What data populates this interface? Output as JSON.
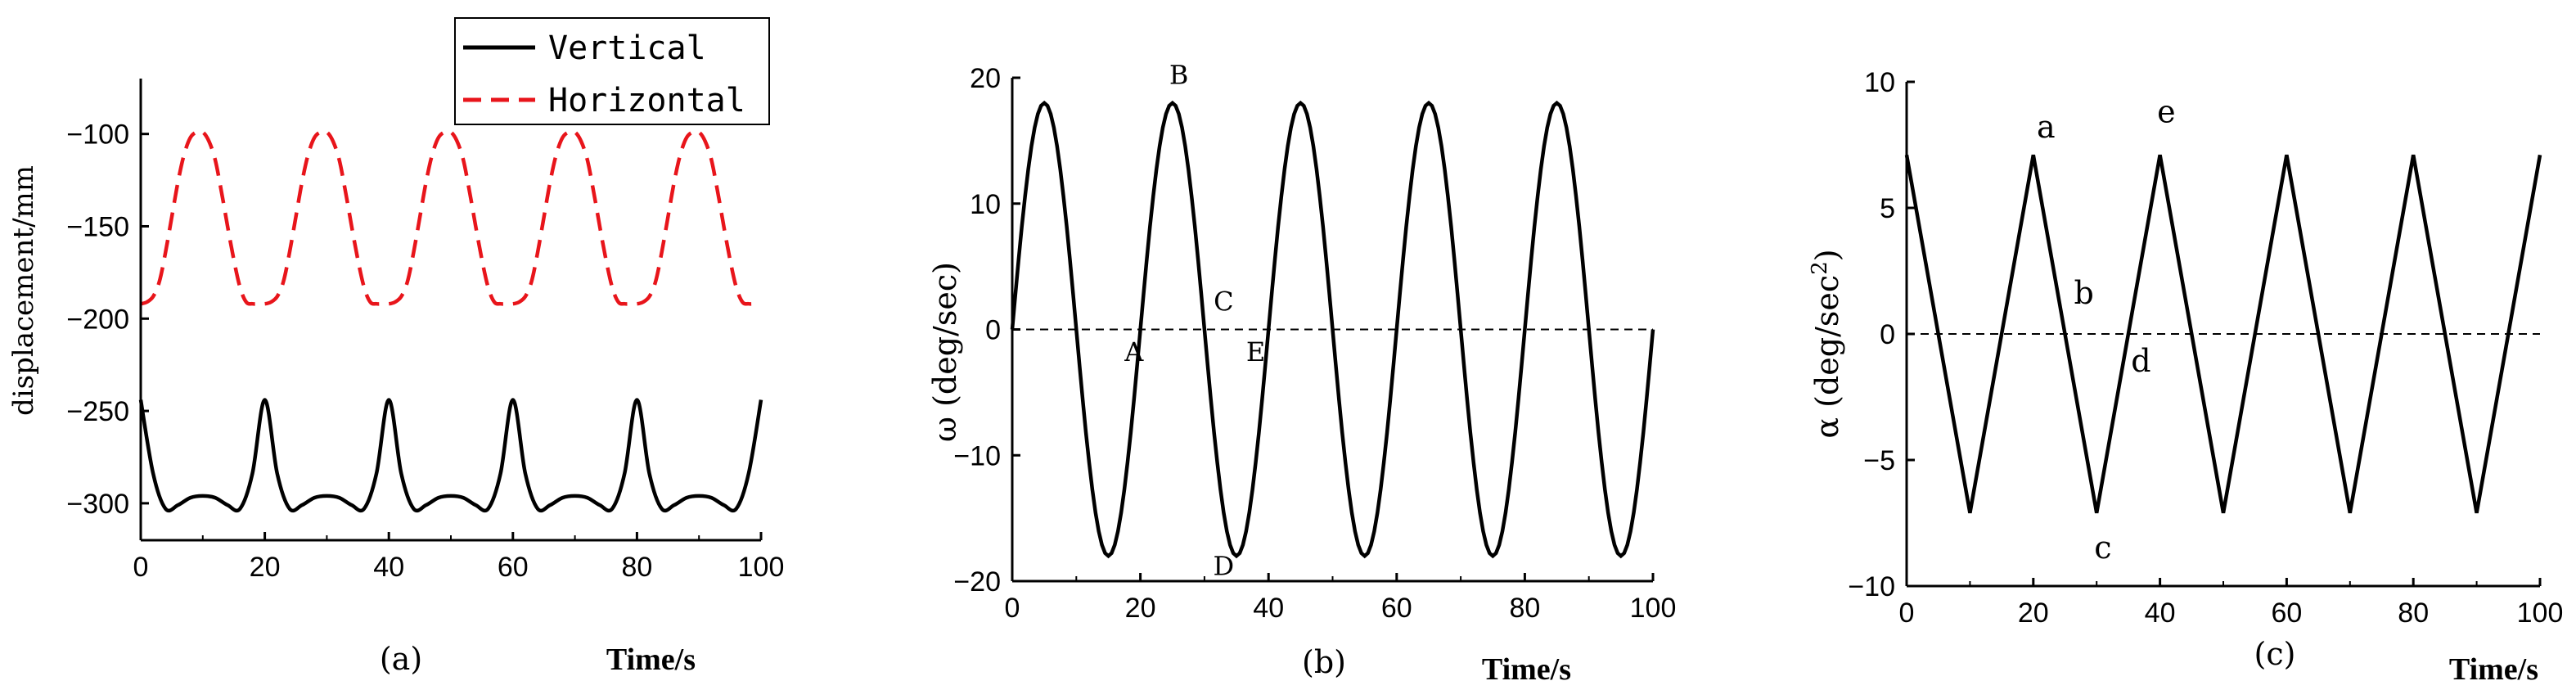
{
  "chart_data": [
    {
      "id": "a",
      "type": "line",
      "caption": "(a)",
      "xlabel": "Time/s",
      "ylabel": "displacement/mm",
      "xlim": [
        0,
        100
      ],
      "ylim": [
        -320,
        -70
      ],
      "x_ticks": [
        "0",
        "20",
        "40",
        "60",
        "80",
        "100"
      ],
      "y_ticks": [
        "-100",
        "-150",
        "-200",
        "-250",
        "-300"
      ],
      "legend_position": "top-right",
      "series": [
        {
          "name": "Vertical",
          "color": "#000000",
          "style": "solid",
          "x": [
            0,
            2,
            4,
            6,
            8,
            10,
            12,
            14,
            16,
            18,
            20,
            22,
            24,
            26,
            28,
            30,
            32,
            34,
            36,
            38,
            40,
            42,
            44,
            46,
            48,
            50,
            52,
            54,
            56,
            58,
            60,
            62,
            64,
            66,
            68,
            70,
            72,
            74,
            76,
            78,
            80,
            82,
            84,
            86,
            88,
            90,
            92,
            94,
            96,
            98,
            100
          ],
          "y": [
            -244,
            -284,
            -303,
            -301,
            -297,
            -296,
            -297,
            -301,
            -303,
            -284,
            -244,
            -284,
            -303,
            -301,
            -297,
            -296,
            -297,
            -301,
            -303,
            -284,
            -244,
            -284,
            -303,
            -301,
            -297,
            -296,
            -297,
            -301,
            -303,
            -284,
            -244,
            -284,
            -303,
            -301,
            -297,
            -296,
            -297,
            -301,
            -303,
            -284,
            -244,
            -284,
            -303,
            -301,
            -297,
            -296,
            -297,
            -301,
            -303,
            -284,
            -244
          ]
        },
        {
          "name": "Horizontal",
          "color": "#e8151b",
          "style": "dashed",
          "x": [
            0,
            1,
            2,
            3,
            4,
            5,
            6,
            7,
            8,
            9,
            10,
            11,
            12,
            13,
            14,
            15,
            16,
            17,
            18,
            19,
            20,
            21,
            22,
            23,
            24,
            25,
            26,
            27,
            28,
            29,
            30,
            31,
            32,
            33,
            34,
            35,
            36,
            37,
            38,
            39,
            40,
            41,
            42,
            43,
            44,
            45,
            46,
            47,
            48,
            49,
            50,
            51,
            52,
            53,
            54,
            55,
            56,
            57,
            58,
            59,
            60,
            61,
            62,
            63,
            64,
            65,
            66,
            67,
            68,
            69,
            70,
            71,
            72,
            73,
            74,
            75,
            76,
            77,
            78,
            79,
            80,
            81,
            82,
            83,
            84,
            85,
            86,
            87,
            88,
            89,
            90,
            91,
            92,
            93,
            94,
            95,
            96,
            97,
            98,
            99,
            100
          ],
          "y": [
            -192,
            -191,
            -188,
            -180,
            -164,
            -145,
            -126,
            -111,
            -102,
            -99,
            -99,
            -104,
            -114,
            -131,
            -150,
            -168,
            -183,
            -191,
            -192,
            -192,
            -192,
            -191,
            -188,
            -180,
            -164,
            -145,
            -126,
            -111,
            -102,
            -99,
            -99,
            -104,
            -114,
            -131,
            -150,
            -168,
            -183,
            -191,
            -192,
            -192,
            -192,
            -191,
            -188,
            -180,
            -164,
            -145,
            -126,
            -111,
            -102,
            -99,
            -99,
            -104,
            -114,
            -131,
            -150,
            -168,
            -183,
            -191,
            -192,
            -192,
            -192,
            -191,
            -188,
            -180,
            -164,
            -145,
            -126,
            -111,
            -102,
            -99,
            -99,
            -104,
            -114,
            -131,
            -150,
            -168,
            -183,
            -191,
            -192,
            -192,
            -192,
            -191,
            -188,
            -180,
            -164,
            -145,
            -126,
            -111,
            -102,
            -99,
            -99,
            -104,
            -114,
            -131,
            -150,
            -168,
            -183,
            -191,
            -192,
            -192,
            -192
          ]
        }
      ]
    },
    {
      "id": "b",
      "type": "line",
      "caption": "(b)",
      "xlabel": "Time/s",
      "ylabel": "ω (deg/sec)",
      "xlim": [
        0,
        100
      ],
      "ylim": [
        -20,
        20
      ],
      "x_ticks": [
        "0",
        "20",
        "40",
        "60",
        "80",
        "100"
      ],
      "y_ticks": [
        "20",
        "10",
        "0",
        "-10",
        "-20"
      ],
      "zero_line": "dashed",
      "series": [
        {
          "color": "#000000",
          "style": "solid",
          "formula": "18*sin(2*pi*t/20)",
          "amplitude": 18,
          "period": 20
        }
      ],
      "annotations": [
        {
          "text": "A",
          "x": 19,
          "y": -2.5
        },
        {
          "text": "B",
          "x": 26,
          "y": 19.5
        },
        {
          "text": "C",
          "x": 33,
          "y": 1.5
        },
        {
          "text": "D",
          "x": 33,
          "y": -19.5
        },
        {
          "text": "E",
          "x": 38,
          "y": -2.5
        }
      ]
    },
    {
      "id": "c",
      "type": "line",
      "caption": "(c)",
      "xlabel": "Time/s",
      "ylabel": "α (deg/sec²)",
      "ylabel_main": "α (deg/sec",
      "ylabel_sup": "2",
      "ylabel_close": ")",
      "xlim": [
        0,
        100
      ],
      "ylim": [
        -10,
        10
      ],
      "x_ticks": [
        "0",
        "20",
        "40",
        "60",
        "80",
        "100"
      ],
      "y_ticks": [
        "10",
        "5",
        "0",
        "-5",
        "-10"
      ],
      "zero_line": "dashed",
      "series": [
        {
          "color": "#000000",
          "style": "solid",
          "x": [
            0,
            10,
            20,
            30,
            40,
            50,
            60,
            70,
            80,
            90,
            100
          ],
          "y": [
            7.1,
            -7.1,
            7.1,
            -7.1,
            7.1,
            -7.1,
            7.1,
            -7.1,
            7.1,
            -7.1,
            7.1
          ]
        }
      ],
      "annotations": [
        {
          "text": "a",
          "x": 22,
          "y": 7.8
        },
        {
          "text": "b",
          "x": 28,
          "y": 1.2
        },
        {
          "text": "c",
          "x": 31,
          "y": -8.9
        },
        {
          "text": "d",
          "x": 37,
          "y": -1.5
        },
        {
          "text": "e",
          "x": 41,
          "y": 8.4
        }
      ]
    }
  ]
}
